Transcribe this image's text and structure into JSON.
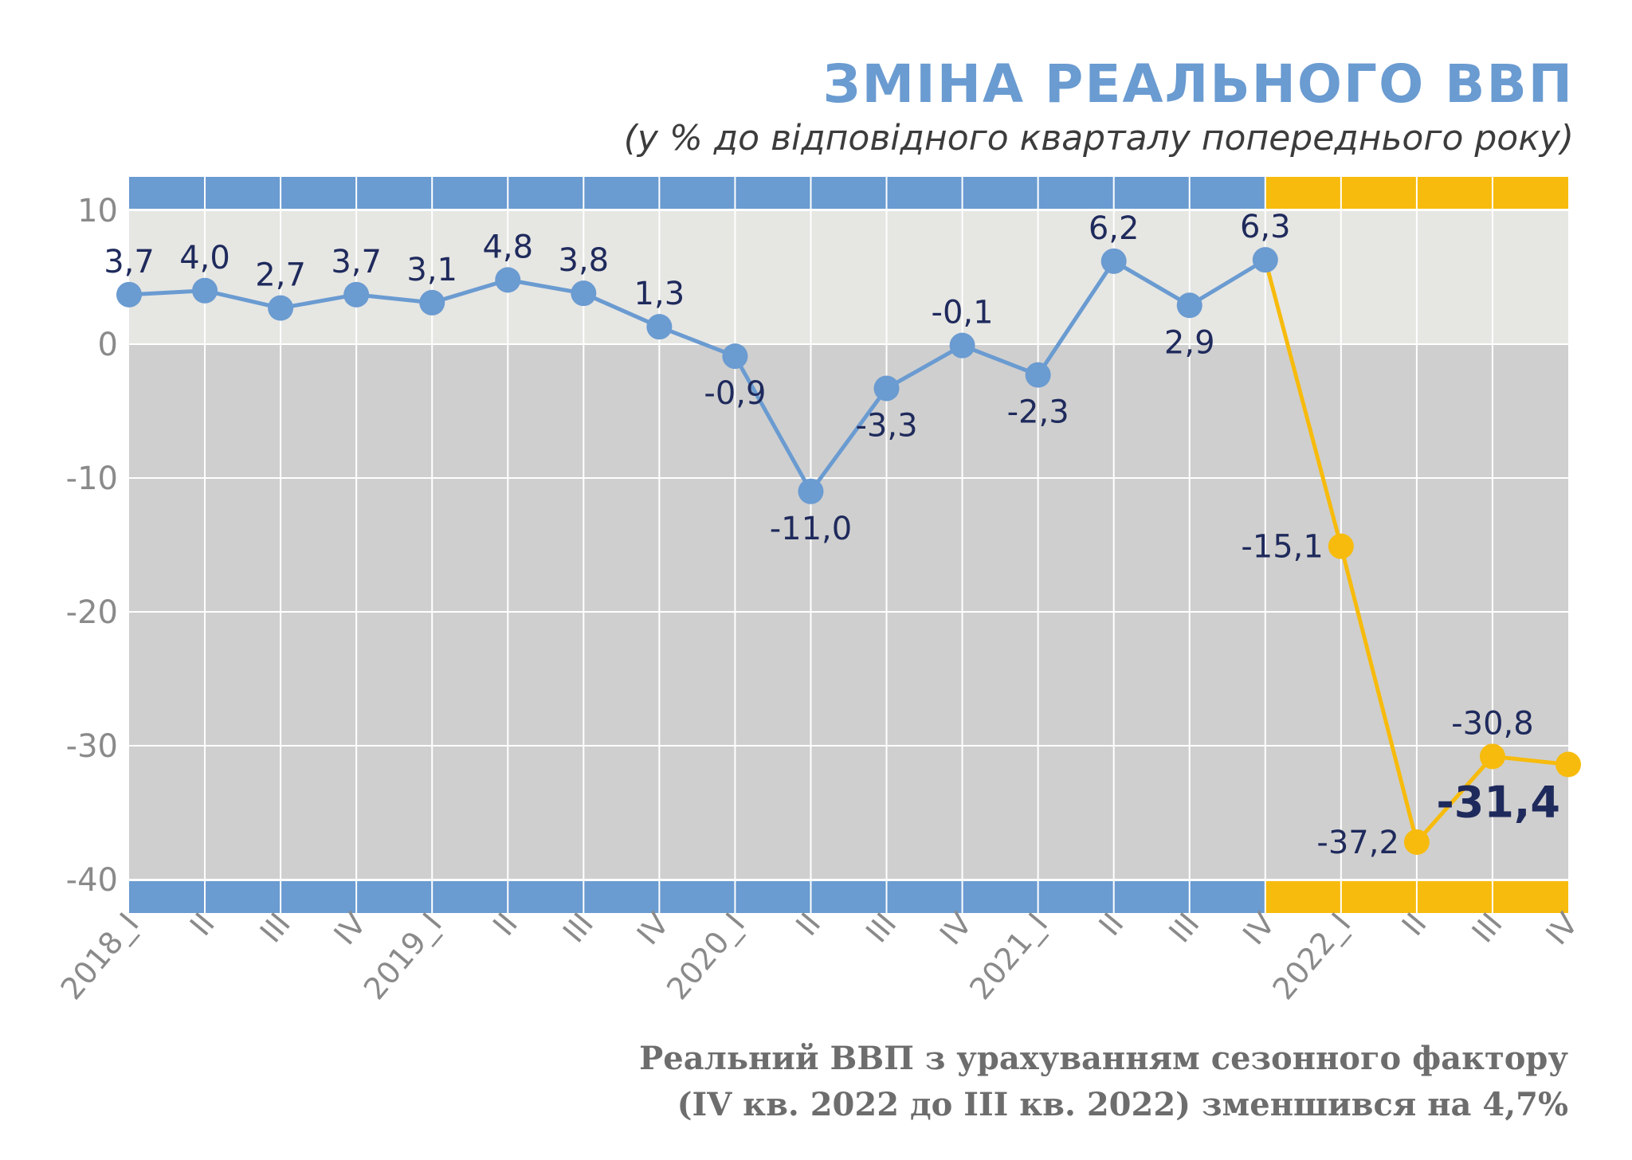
{
  "colors": {
    "blue": "#6a9bd1",
    "yellow": "#f7bb0d",
    "label": "#1f2a5c",
    "plot_upper": "#e6e6e3",
    "plot_lower": "#cfcfcf",
    "grid": "#ffffff",
    "tick": "#8a8a8a"
  },
  "chart_data": {
    "type": "line",
    "title": "ЗМІНА РЕАЛЬНОГО ВВП",
    "subtitle": "(у % до відповідного кварталу попереднього року)",
    "xlabel": "",
    "ylabel": "",
    "ylim": [
      -40,
      10
    ],
    "yticks": [
      10,
      0,
      -10,
      -20,
      -30,
      -40
    ],
    "grid": true,
    "categories": [
      "2018_I",
      "II",
      "III",
      "IV",
      "2019_I",
      "II",
      "III",
      "IV",
      "2020_I",
      "II",
      "III",
      "IV",
      "2021_I",
      "II",
      "III",
      "IV",
      "2022_I",
      "II",
      "III",
      "IV"
    ],
    "values": [
      3.7,
      4.0,
      2.7,
      3.7,
      3.1,
      4.8,
      3.8,
      1.3,
      -0.9,
      -11.0,
      -3.3,
      -0.1,
      -2.3,
      6.2,
      2.9,
      6.3,
      -15.1,
      -37.2,
      -30.8,
      -31.4
    ],
    "data_labels": [
      "3,7",
      "4,0",
      "2,7",
      "3,7",
      "3,1",
      "4,8",
      "3,8",
      "1,3",
      "-0,9",
      "-11,0",
      "-3,3",
      "-0,1",
      "-2,3",
      "6,2",
      "2,9",
      "6,3",
      "-15,1",
      "-37,2",
      "-30,8",
      "-31,4"
    ],
    "label_position": [
      "above",
      "above",
      "above",
      "above",
      "above",
      "above",
      "above",
      "above",
      "below",
      "below",
      "below",
      "above",
      "below",
      "above",
      "below",
      "above",
      "left",
      "left",
      "above",
      "left"
    ],
    "highlight_last_label": true,
    "series": [
      {
        "name": "",
        "color": "#6a9bd1",
        "from_index": 0,
        "to_index": 15
      },
      {
        "name": "",
        "color": "#f7bb0d",
        "from_index": 15,
        "to_index": 19
      }
    ],
    "band_colors": {
      "before_2022": "#6a9bd1",
      "year_2022": "#f7bb0d"
    }
  },
  "footnote": {
    "line1": "Реальний ВВП з урахуванням сезонного фактору",
    "line2": "(IV кв. 2022 до III кв. 2022) зменшився на 4,7%"
  }
}
